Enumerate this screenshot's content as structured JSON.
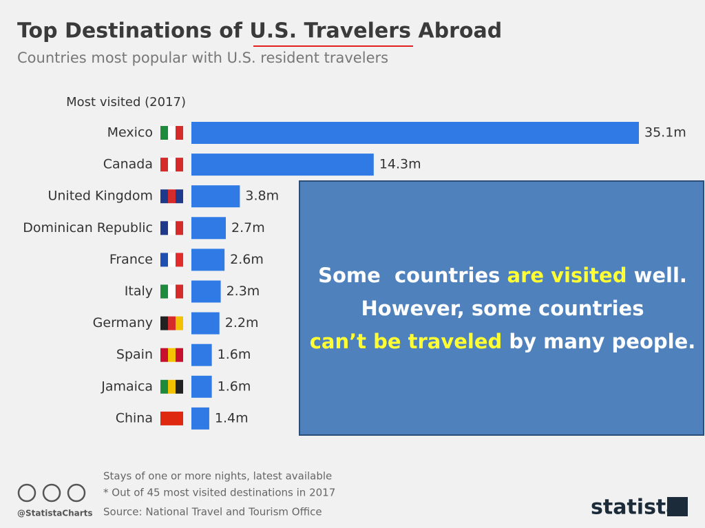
{
  "chart_data": {
    "type": "bar",
    "orientation": "horizontal",
    "title": "Top Destinations of U.S. Travelers Abroad",
    "subtitle": "Countries most popular with U.S. resident travelers",
    "category_header": "Most visited (2017)",
    "categories": [
      "Mexico",
      "Canada",
      "United Kingdom",
      "Dominican Republic",
      "France",
      "Italy",
      "Germany",
      "Spain",
      "Jamaica",
      "China"
    ],
    "values": [
      35.1,
      14.3,
      3.8,
      2.7,
      2.6,
      2.3,
      2.2,
      1.6,
      1.6,
      1.4
    ],
    "value_labels": [
      "35.1m",
      "14.3m",
      "3.8m",
      "2.7m",
      "2.6m",
      "2.3m",
      "2.2m",
      "1.6m",
      "1.6m",
      "1.4m"
    ],
    "color": "#2f7ae5",
    "notes": [
      "Stays of one or more nights, latest available",
      "* Out of 45 most visited destinations in 2017",
      "Source: National Travel and Tourism Office"
    ],
    "handle": "@StatistaCharts",
    "brand": "statista"
  },
  "overlay": {
    "lines": [
      [
        {
          "text": "Some  countries ",
          "color": "#ffffff"
        },
        {
          "text": "are visited",
          "color": "#ffff33"
        },
        {
          "text": " well.",
          "color": "#ffffff"
        }
      ],
      [
        {
          "text": "However, some countries",
          "color": "#ffffff"
        }
      ],
      [
        {
          "text": "can’t be traveled",
          "color": "#ffff33"
        },
        {
          "text": " by many people.",
          "color": "#ffffff"
        }
      ]
    ]
  }
}
